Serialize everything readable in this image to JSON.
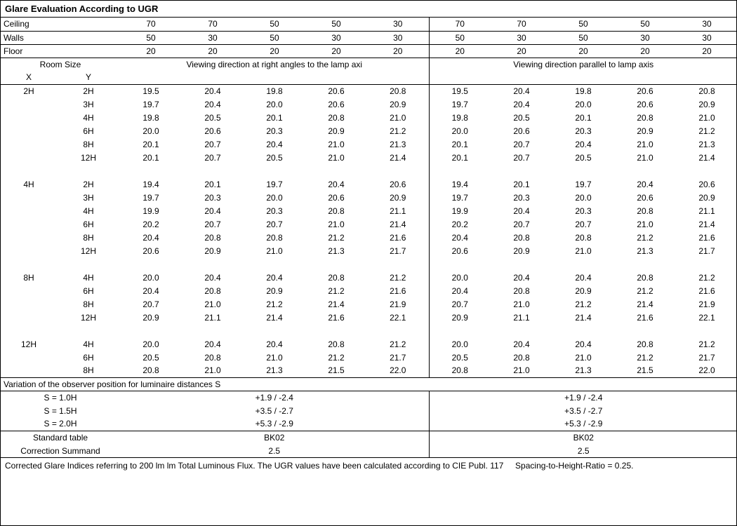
{
  "title": "Glare Evaluation According to UGR",
  "header_rows": {
    "ceiling_label": "Ceiling",
    "walls_label": "Walls",
    "floor_label": "Floor",
    "ceiling": [
      "70",
      "70",
      "50",
      "50",
      "30",
      "70",
      "70",
      "50",
      "50",
      "30"
    ],
    "walls": [
      "50",
      "30",
      "50",
      "30",
      "30",
      "50",
      "30",
      "50",
      "30",
      "30"
    ],
    "floor": [
      "20",
      "20",
      "20",
      "20",
      "20",
      "20",
      "20",
      "20",
      "20",
      "20"
    ]
  },
  "room_size_label": "Room Size",
  "x_label": "X",
  "y_label": "Y",
  "viewing_right_label": "Viewing direction at right angles to the lamp axi",
  "viewing_parallel_label": "Viewing direction parallel to lamp axis",
  "groups": [
    {
      "x": "2H",
      "rows": [
        {
          "y": "2H",
          "v": [
            "19.5",
            "20.4",
            "19.8",
            "20.6",
            "20.8",
            "19.5",
            "20.4",
            "19.8",
            "20.6",
            "20.8"
          ]
        },
        {
          "y": "3H",
          "v": [
            "19.7",
            "20.4",
            "20.0",
            "20.6",
            "20.9",
            "19.7",
            "20.4",
            "20.0",
            "20.6",
            "20.9"
          ]
        },
        {
          "y": "4H",
          "v": [
            "19.8",
            "20.5",
            "20.1",
            "20.8",
            "21.0",
            "19.8",
            "20.5",
            "20.1",
            "20.8",
            "21.0"
          ]
        },
        {
          "y": "6H",
          "v": [
            "20.0",
            "20.6",
            "20.3",
            "20.9",
            "21.2",
            "20.0",
            "20.6",
            "20.3",
            "20.9",
            "21.2"
          ]
        },
        {
          "y": "8H",
          "v": [
            "20.1",
            "20.7",
            "20.4",
            "21.0",
            "21.3",
            "20.1",
            "20.7",
            "20.4",
            "21.0",
            "21.3"
          ]
        },
        {
          "y": "12H",
          "v": [
            "20.1",
            "20.7",
            "20.5",
            "21.0",
            "21.4",
            "20.1",
            "20.7",
            "20.5",
            "21.0",
            "21.4"
          ]
        }
      ]
    },
    {
      "x": "4H",
      "rows": [
        {
          "y": "2H",
          "v": [
            "19.4",
            "20.1",
            "19.7",
            "20.4",
            "20.6",
            "19.4",
            "20.1",
            "19.7",
            "20.4",
            "20.6"
          ]
        },
        {
          "y": "3H",
          "v": [
            "19.7",
            "20.3",
            "20.0",
            "20.6",
            "20.9",
            "19.7",
            "20.3",
            "20.0",
            "20.6",
            "20.9"
          ]
        },
        {
          "y": "4H",
          "v": [
            "19.9",
            "20.4",
            "20.3",
            "20.8",
            "21.1",
            "19.9",
            "20.4",
            "20.3",
            "20.8",
            "21.1"
          ]
        },
        {
          "y": "6H",
          "v": [
            "20.2",
            "20.7",
            "20.7",
            "21.0",
            "21.4",
            "20.2",
            "20.7",
            "20.7",
            "21.0",
            "21.4"
          ]
        },
        {
          "y": "8H",
          "v": [
            "20.4",
            "20.8",
            "20.8",
            "21.2",
            "21.6",
            "20.4",
            "20.8",
            "20.8",
            "21.2",
            "21.6"
          ]
        },
        {
          "y": "12H",
          "v": [
            "20.6",
            "20.9",
            "21.0",
            "21.3",
            "21.7",
            "20.6",
            "20.9",
            "21.0",
            "21.3",
            "21.7"
          ]
        }
      ]
    },
    {
      "x": "8H",
      "rows": [
        {
          "y": "4H",
          "v": [
            "20.0",
            "20.4",
            "20.4",
            "20.8",
            "21.2",
            "20.0",
            "20.4",
            "20.4",
            "20.8",
            "21.2"
          ]
        },
        {
          "y": "6H",
          "v": [
            "20.4",
            "20.8",
            "20.9",
            "21.2",
            "21.6",
            "20.4",
            "20.8",
            "20.9",
            "21.2",
            "21.6"
          ]
        },
        {
          "y": "8H",
          "v": [
            "20.7",
            "21.0",
            "21.2",
            "21.4",
            "21.9",
            "20.7",
            "21.0",
            "21.2",
            "21.4",
            "21.9"
          ]
        },
        {
          "y": "12H",
          "v": [
            "20.9",
            "21.1",
            "21.4",
            "21.6",
            "22.1",
            "20.9",
            "21.1",
            "21.4",
            "21.6",
            "22.1"
          ]
        }
      ]
    },
    {
      "x": "12H",
      "rows": [
        {
          "y": "4H",
          "v": [
            "20.0",
            "20.4",
            "20.4",
            "20.8",
            "21.2",
            "20.0",
            "20.4",
            "20.4",
            "20.8",
            "21.2"
          ]
        },
        {
          "y": "6H",
          "v": [
            "20.5",
            "20.8",
            "21.0",
            "21.2",
            "21.7",
            "20.5",
            "20.8",
            "21.0",
            "21.2",
            "21.7"
          ]
        },
        {
          "y": "8H",
          "v": [
            "20.8",
            "21.0",
            "21.3",
            "21.5",
            "22.0",
            "20.8",
            "21.0",
            "21.3",
            "21.5",
            "22.0"
          ]
        }
      ]
    }
  ],
  "variation_label": "Variation of the observer position for luminaire distances S",
  "variation_rows": [
    {
      "s": "S = 1.0H",
      "left": "+1.9 / -2.4",
      "right": "+1.9 / -2.4"
    },
    {
      "s": "S = 1.5H",
      "left": "+3.5 / -2.7",
      "right": "+3.5 / -2.7"
    },
    {
      "s": "S = 2.0H",
      "left": "+5.3 / -2.9",
      "right": "+5.3 / -2.9"
    }
  ],
  "standard_table_label": "Standard table",
  "standard_table_left": "BK02",
  "standard_table_right": "BK02",
  "correction_label": "Correction Summand",
  "correction_left": "2.5",
  "correction_right": "2.5",
  "footnote_main": "Corrected Glare Indices referring to 200 lm lm Total Luminous Flux. The UGR values have been calculated according to CIE Publ. 117",
  "footnote_right": "Spacing-to-Height-Ratio = 0.25."
}
